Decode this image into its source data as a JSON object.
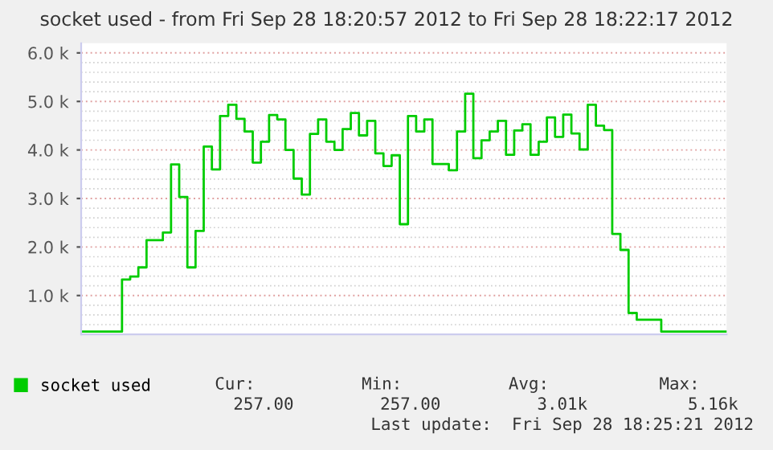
{
  "chart_data": {
    "type": "step",
    "title": "socket used - from Fri Sep 28 18:20:57 2012 to Fri Sep 28 18:22:17 2012",
    "categories": [
      null,
      null,
      null,
      null,
      null,
      null,
      null,
      null,
      null,
      null,
      null,
      null,
      null,
      null,
      null,
      null,
      null,
      null,
      null,
      null,
      null,
      null,
      null,
      null,
      null,
      null,
      null,
      null,
      null,
      null,
      null,
      null,
      null,
      null,
      null,
      null,
      null,
      null,
      null,
      null,
      null,
      null,
      null,
      null,
      null,
      null,
      null,
      null,
      null,
      null,
      null,
      null,
      null,
      null,
      null,
      null,
      null,
      null,
      null,
      null,
      null,
      null,
      null,
      null,
      null,
      null,
      null,
      null,
      null,
      null,
      null,
      null,
      null,
      null,
      null,
      null,
      null,
      null,
      null,
      null
    ],
    "series": [
      {
        "name": "socket used",
        "color": "#00cc00",
        "values": [
          257,
          257,
          257,
          257,
          257,
          1330,
          1390,
          1580,
          2140,
          2140,
          2300,
          3700,
          3030,
          1580,
          2330,
          4070,
          3600,
          4700,
          4930,
          4640,
          4380,
          3740,
          4170,
          4720,
          4630,
          4000,
          3410,
          3080,
          4330,
          4630,
          4170,
          4000,
          4430,
          4760,
          4300,
          4600,
          3930,
          3670,
          3890,
          2470,
          4700,
          4380,
          4630,
          3710,
          3710,
          3580,
          4380,
          5160,
          3830,
          4200,
          4380,
          4600,
          3900,
          4400,
          4530,
          3900,
          4170,
          4670,
          4270,
          4730,
          4340,
          4010,
          4930,
          4500,
          4410,
          2270,
          1940,
          640,
          500,
          500,
          500,
          257,
          257,
          257,
          257,
          257,
          257,
          257,
          257,
          257
        ]
      }
    ],
    "ylim": [
      200,
      6200
    ],
    "yticks": [
      {
        "value": 1000,
        "label": "1.0 k"
      },
      {
        "value": 2000,
        "label": "2.0 k"
      },
      {
        "value": 3000,
        "label": "3.0 k"
      },
      {
        "value": 4000,
        "label": "4.0 k"
      },
      {
        "value": 5000,
        "label": "5.0 k"
      },
      {
        "value": 6000,
        "label": "6.0 k"
      }
    ],
    "grid": "y",
    "legend": "bottom left",
    "annotations": [
      "Cur:",
      "Min:",
      "Avg:",
      "Max:",
      "257.00",
      "257.00",
      "3.01k",
      "5.16k",
      "Last update:  Fri Sep 28 18:25:21 2012"
    ]
  }
}
